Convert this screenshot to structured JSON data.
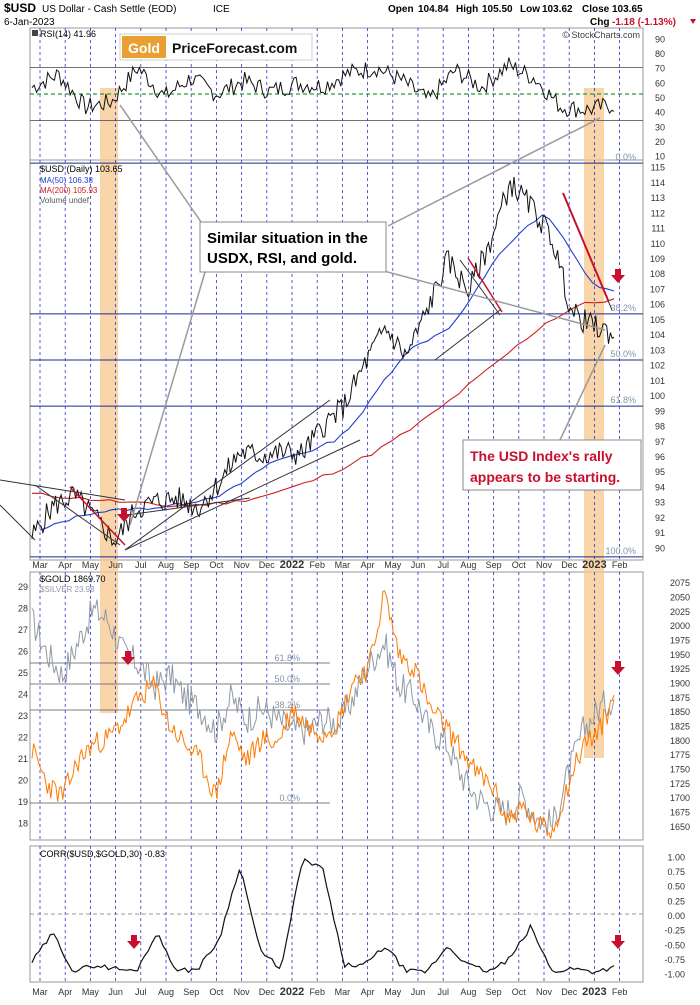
{
  "header": {
    "symbol": "$USD",
    "name": "US Dollar - Cash Settle (EOD)",
    "exchange": "ICE",
    "date": "6-Jan-2023",
    "open_label": "Open",
    "open": "104.84",
    "high_label": "High",
    "high": "105.50",
    "low_label": "Low",
    "low": "103.62",
    "close_label": "Close",
    "close": "103.65",
    "chg_label": "Chg",
    "chg": "-1.18 (-1.13%)",
    "copyright": "© StockCharts.com"
  },
  "logo": {
    "part1": "Gold",
    "part2": "PriceForecast.com"
  },
  "colors": {
    "price": "#111111",
    "ma50": "#1f3fcf",
    "ma200": "#cc2020",
    "rsi": "#111111",
    "gold": "#ff7a00",
    "silver": "#8f9aa6",
    "grid": "#0000cc",
    "highlight": "#f6c88e",
    "annot_red": "#c8102e",
    "fib": "#7f95a8"
  },
  "annotations": {
    "similar": [
      "Similar situation in the",
      "USDX, RSI, and gold."
    ],
    "rally": [
      "The USD Index's rally",
      "appears to be starting."
    ]
  },
  "chart_data": [
    {
      "type": "line",
      "title": "RSI(14) 41.96",
      "ylim": [
        0,
        100
      ],
      "yticks": [
        "90",
        "80",
        "70",
        "60",
        "50",
        "40",
        "30",
        "20",
        "10"
      ],
      "reference_levels": [
        70,
        50,
        30
      ],
      "series": [
        {
          "name": "RSI(14)",
          "x": [
            "Mar",
            "Apr",
            "May",
            "Jun",
            "Jul",
            "Aug",
            "Sep",
            "Oct",
            "Nov",
            "Dec",
            "Jan",
            "Feb",
            "Mar",
            "Apr",
            "May",
            "Jun",
            "Jul",
            "Aug",
            "Sep",
            "Oct",
            "Nov",
            "Dec",
            "Jan"
          ],
          "values": [
            55,
            65,
            40,
            44,
            70,
            48,
            62,
            50,
            60,
            52,
            58,
            56,
            66,
            70,
            60,
            45,
            68,
            55,
            72,
            62,
            40,
            38,
            42
          ]
        }
      ]
    },
    {
      "type": "line",
      "title": "$USD (Daily) 103.65",
      "legend": [
        "MA(50) 106.38",
        "MA(200) 105.93",
        "Volume undef"
      ],
      "x_labels": [
        "Mar",
        "Apr",
        "May",
        "Jun",
        "Jul",
        "Aug",
        "Sep",
        "Oct",
        "Nov",
        "Dec",
        "2022",
        "Feb",
        "Mar",
        "Apr",
        "May",
        "Jun",
        "Jul",
        "Aug",
        "Sep",
        "Oct",
        "Nov",
        "Dec",
        "2023",
        "Feb"
      ],
      "ylim": [
        89,
        115
      ],
      "yticks": [
        "115",
        "114",
        "113",
        "112",
        "111",
        "110",
        "109",
        "108",
        "107",
        "106",
        "105",
        "104",
        "103",
        "102",
        "101",
        "100",
        "99",
        "98",
        "97",
        "96",
        "95",
        "94",
        "93",
        "92",
        "91",
        "90"
      ],
      "fib_levels": [
        {
          "label": "0.0%",
          "value": 114.8
        },
        {
          "label": "38.2%",
          "value": 105.0
        },
        {
          "label": "50.0%",
          "value": 102.0
        },
        {
          "label": "61.8%",
          "value": 99.0
        },
        {
          "label": "100.0%",
          "value": 89.2
        }
      ],
      "series": [
        {
          "name": "$USD",
          "values": [
            90.5,
            92.5,
            93.2,
            91.8,
            90.2,
            92.3,
            92.8,
            93.0,
            92.4,
            94.0,
            96.0,
            95.8,
            96.0,
            95.9,
            97.7,
            99.0,
            101.7,
            104.1,
            102.2,
            105.2,
            108.5,
            106.5,
            109.5,
            113.5,
            112.0,
            110.0,
            105.0,
            104.2,
            103.65
          ]
        },
        {
          "name": "MA(50)",
          "values": [
            90.9,
            91.5,
            92.0,
            92.2,
            92.3,
            92.4,
            92.6,
            92.9,
            93.3,
            94.2,
            95.3,
            95.8,
            96.2,
            96.9,
            98.5,
            100.7,
            102.6,
            103.4,
            104.3,
            106.5,
            108.9,
            110.4,
            111.5,
            109.5,
            107.0,
            106.4
          ]
        },
        {
          "name": "MA(200)",
          "values": [
            93.3,
            93.1,
            92.9,
            92.7,
            92.5,
            92.6,
            92.8,
            93.3,
            94.0,
            94.9,
            96.0,
            97.4,
            99.0,
            100.8,
            102.6,
            104.4,
            105.6,
            105.93
          ]
        }
      ]
    },
    {
      "type": "line",
      "title": "$GOLD 1869.70",
      "legend": [
        "$SILVER 23.98"
      ],
      "y_left_ticks": [
        "29",
        "28",
        "27",
        "26",
        "25",
        "24",
        "23",
        "22",
        "21",
        "20",
        "19",
        "18"
      ],
      "y_right_ticks": [
        "2075",
        "2050",
        "2025",
        "2000",
        "1975",
        "1950",
        "1925",
        "1900",
        "1875",
        "1850",
        "1825",
        "1800",
        "1775",
        "1750",
        "1725",
        "1700",
        "1675",
        "1650"
      ],
      "fib_levels": [
        {
          "label": "61.8%"
        },
        {
          "label": "50.0%"
        },
        {
          "label": "38.2%"
        },
        {
          "label": "0.0%"
        }
      ],
      "series": [
        {
          "name": "$GOLD",
          "values": [
            1780,
            1720,
            1700,
            1760,
            1790,
            1800,
            1830,
            1870,
            1890,
            1820,
            1790,
            1760,
            1700,
            1810,
            1760,
            1800,
            1790,
            1850,
            1820,
            1810,
            1830,
            1900,
            1920,
            2050,
            1940,
            1920,
            1850,
            1820,
            1780,
            1740,
            1720,
            1660,
            1680,
            1650,
            1640,
            1720,
            1790,
            1810,
            1869.7
          ]
        },
        {
          "name": "$SILVER",
          "values": [
            27.5,
            26.0,
            25.0,
            26.5,
            28.0,
            27.5,
            26.0,
            25.5,
            24.5,
            25.0,
            24.0,
            23.5,
            22.5,
            24.0,
            23.0,
            23.5,
            23.0,
            22.5,
            22.5,
            23.0,
            22.8,
            24.0,
            25.5,
            26.5,
            24.5,
            24.0,
            22.5,
            22.0,
            20.5,
            19.5,
            19.0,
            18.8,
            19.5,
            18.5,
            18.2,
            20.5,
            22.5,
            23.5,
            23.98
          ]
        }
      ]
    },
    {
      "type": "line",
      "title": "CORR($USD,$GOLD,30) -0.83",
      "ylim": [
        -1.0,
        1.0
      ],
      "yticks": [
        "1.00",
        "0.75",
        "0.50",
        "0.25",
        "0.00",
        "-0.25",
        "-0.50",
        "-0.75",
        "-1.00"
      ],
      "series": [
        {
          "name": "CORR($USD,$GOLD,30)",
          "values": [
            -0.75,
            -0.3,
            -0.9,
            -0.8,
            -0.85,
            -0.9,
            -0.3,
            -0.9,
            -0.85,
            -0.4,
            0.75,
            -0.6,
            -0.85,
            0.85,
            0.7,
            -0.8,
            -0.8,
            -0.5,
            -0.9,
            -0.9,
            -0.5,
            -0.8,
            -0.9,
            -0.7,
            -0.2,
            -0.9,
            -0.85,
            -0.9,
            -0.83
          ]
        }
      ]
    }
  ]
}
